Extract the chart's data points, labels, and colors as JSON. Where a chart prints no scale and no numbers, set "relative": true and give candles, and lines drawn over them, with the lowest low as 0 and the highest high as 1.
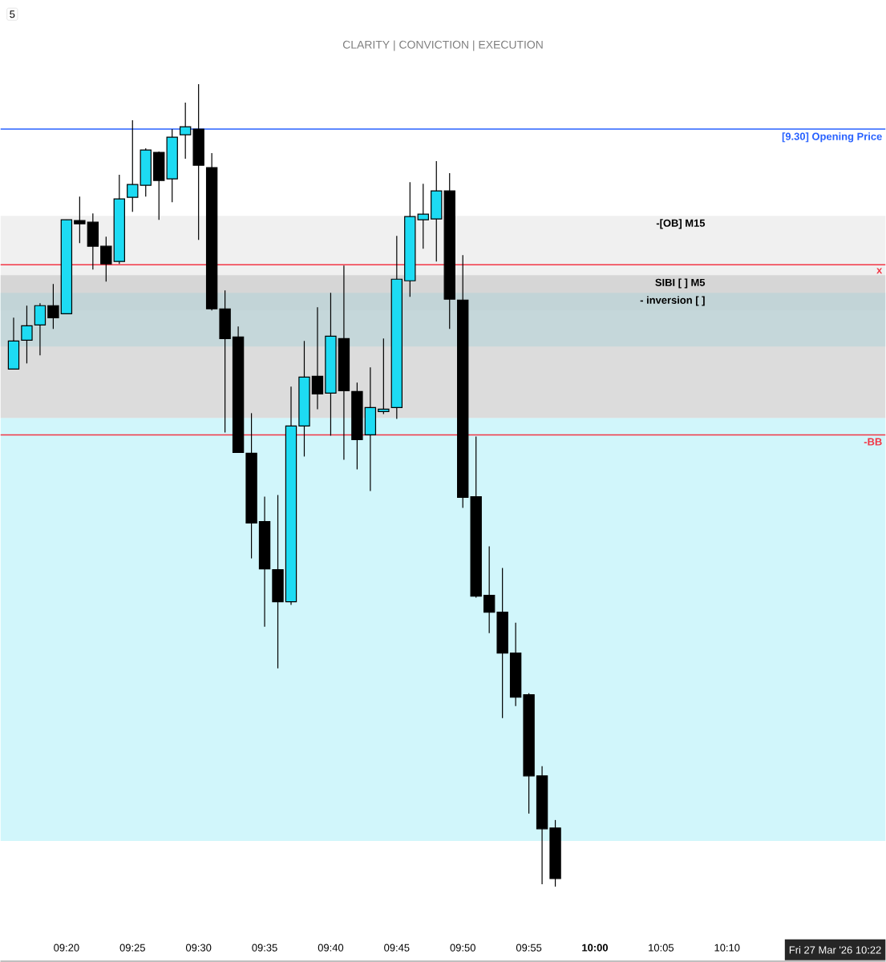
{
  "chart_data": {
    "type": "candlestick",
    "relative": true,
    "subtitle": "CLARITY  | CONVICTION  | EXECUTION",
    "annotations": [
      "5",
      "Fri 27 Mar '26  10:22"
    ],
    "x": [
      "2026-03-27T09:16",
      "2026-03-27T09:17",
      "2026-03-27T09:18",
      "2026-03-27T09:19",
      "2026-03-27T09:20",
      "2026-03-27T09:21",
      "2026-03-27T09:22",
      "2026-03-27T09:23",
      "2026-03-27T09:24",
      "2026-03-27T09:25",
      "2026-03-27T09:26",
      "2026-03-27T09:27",
      "2026-03-27T09:28",
      "2026-03-27T09:29",
      "2026-03-27T09:30",
      "2026-03-27T09:31",
      "2026-03-27T09:32",
      "2026-03-27T09:33",
      "2026-03-27T09:34",
      "2026-03-27T09:35",
      "2026-03-27T09:36",
      "2026-03-27T09:37",
      "2026-03-27T09:38",
      "2026-03-27T09:39",
      "2026-03-27T09:40",
      "2026-03-27T09:41",
      "2026-03-27T09:42",
      "2026-03-27T09:43",
      "2026-03-27T09:44",
      "2026-03-27T09:45",
      "2026-03-27T09:46",
      "2026-03-27T09:47",
      "2026-03-27T09:48",
      "2026-03-27T09:49",
      "2026-03-27T09:50",
      "2026-03-27T09:51",
      "2026-03-27T09:52",
      "2026-03-27T09:53",
      "2026-03-27T09:54",
      "2026-03-27T09:55",
      "2026-03-27T09:56",
      "2026-03-27T09:57"
    ],
    "ohlc": [
      [
        0.645,
        0.709,
        0.645,
        0.68
      ],
      [
        0.681,
        0.724,
        0.652,
        0.699
      ],
      [
        0.7,
        0.727,
        0.662,
        0.724
      ],
      [
        0.724,
        0.751,
        0.695,
        0.709
      ],
      [
        0.714,
        0.831,
        0.714,
        0.831
      ],
      [
        0.83,
        0.86,
        0.802,
        0.826
      ],
      [
        0.828,
        0.839,
        0.769,
        0.798
      ],
      [
        0.798,
        0.81,
        0.754,
        0.776
      ],
      [
        0.779,
        0.887,
        0.776,
        0.857
      ],
      [
        0.859,
        0.955,
        0.841,
        0.875
      ],
      [
        0.874,
        0.92,
        0.86,
        0.918
      ],
      [
        0.915,
        0.916,
        0.831,
        0.88
      ],
      [
        0.882,
        0.944,
        0.853,
        0.934
      ],
      [
        0.937,
        0.977,
        0.907,
        0.947
      ],
      [
        0.944,
        1.0,
        0.806,
        0.899
      ],
      [
        0.896,
        0.914,
        0.718,
        0.72
      ],
      [
        0.72,
        0.743,
        0.566,
        0.683
      ],
      [
        0.685,
        0.698,
        0.541,
        0.541
      ],
      [
        0.54,
        0.59,
        0.409,
        0.453
      ],
      [
        0.455,
        0.486,
        0.324,
        0.396
      ],
      [
        0.395,
        0.488,
        0.272,
        0.355
      ],
      [
        0.355,
        0.623,
        0.351,
        0.574
      ],
      [
        0.574,
        0.68,
        0.536,
        0.635
      ],
      [
        0.636,
        0.722,
        0.595,
        0.614
      ],
      [
        0.615,
        0.74,
        0.562,
        0.686
      ],
      [
        0.683,
        0.774,
        0.532,
        0.618
      ],
      [
        0.617,
        0.628,
        0.52,
        0.557
      ],
      [
        0.563,
        0.647,
        0.493,
        0.597
      ],
      [
        0.592,
        0.683,
        0.589,
        0.595
      ],
      [
        0.597,
        0.811,
        0.583,
        0.757
      ],
      [
        0.755,
        0.878,
        0.735,
        0.835
      ],
      [
        0.831,
        0.876,
        0.795,
        0.838
      ],
      [
        0.832,
        0.904,
        0.779,
        0.867
      ],
      [
        0.867,
        0.889,
        0.695,
        0.732
      ],
      [
        0.731,
        0.787,
        0.472,
        0.485
      ],
      [
        0.486,
        0.561,
        0.36,
        0.362
      ],
      [
        0.363,
        0.424,
        0.316,
        0.342
      ],
      [
        0.342,
        0.397,
        0.21,
        0.291
      ],
      [
        0.291,
        0.329,
        0.225,
        0.236
      ],
      [
        0.239,
        0.241,
        0.091,
        0.138
      ],
      [
        0.138,
        0.15,
        0.003,
        0.072
      ],
      [
        0.073,
        0.083,
        0.0,
        0.01
      ]
    ],
    "colors": [
      "#1ddbf3",
      "#1ddbf3",
      "#1ddbf3",
      "#000000",
      "#1ddbf3",
      "#000000",
      "#000000",
      "#000000",
      "#1ddbf3",
      "#1ddbf3",
      "#1ddbf3",
      "#000000",
      "#1ddbf3",
      "#1ddbf3",
      "#000000",
      "#000000",
      "#000000",
      "#000000",
      "#000000",
      "#000000",
      "#000000",
      "#1ddbf3",
      "#1ddbf3",
      "#000000",
      "#1ddbf3",
      "#000000",
      "#000000",
      "#1ddbf3",
      "#1ddbf3",
      "#1ddbf3",
      "#1ddbf3",
      "#1ddbf3",
      "#1ddbf3",
      "#000000",
      "#000000",
      "#000000",
      "#000000",
      "#000000",
      "#000000",
      "#000000",
      "#000000",
      "#000000"
    ],
    "xlim": [
      "2026-03-27T09:15",
      "2026-03-27T10:22"
    ],
    "xticks": [
      {
        "value": "2026-03-27T09:20",
        "label": "09:20"
      },
      {
        "value": "2026-03-27T09:25",
        "label": "09:25"
      },
      {
        "value": "2026-03-27T09:30",
        "label": "09:30"
      },
      {
        "value": "2026-03-27T09:35",
        "label": "09:35"
      },
      {
        "value": "2026-03-27T09:40",
        "label": "09:40"
      },
      {
        "value": "2026-03-27T09:45",
        "label": "09:45"
      },
      {
        "value": "2026-03-27T09:50",
        "label": "09:50"
      },
      {
        "value": "2026-03-27T09:55",
        "label": "09:55"
      },
      {
        "value": "2026-03-27T10:00",
        "label": "**10:00**"
      },
      {
        "value": "2026-03-27T10:05",
        "label": "10:05"
      },
      {
        "value": "2026-03-27T10:10",
        "label": "10:10"
      }
    ],
    "bands": [
      {
        "axis": "y",
        "from": 0.718,
        "to": 0.836,
        "label": "-[OB] M15",
        "color": "#e6e6e6"
      },
      {
        "axis": "y",
        "from": 0.673,
        "to": 0.74,
        "label": "- inversion [ ]",
        "color": "#9fe9f5"
      },
      {
        "axis": "y",
        "from": 0.584,
        "to": 0.762,
        "label": "SIBI [ ] M5",
        "color": "#c4c4c4"
      },
      {
        "axis": "y",
        "from": 0.057,
        "to": 0.584,
        "color": "#b2f0f9"
      }
    ],
    "ref_lines": [
      {
        "axis": "y",
        "value": 0.944,
        "label": "[9.30] Opening Price",
        "color": "#2962ff"
      },
      {
        "axis": "y",
        "value": 0.775,
        "label": "x",
        "color": "#f23645"
      },
      {
        "axis": "y",
        "value": 0.563,
        "label": "-BB",
        "color": "#f23645"
      }
    ],
    "grid": false
  }
}
